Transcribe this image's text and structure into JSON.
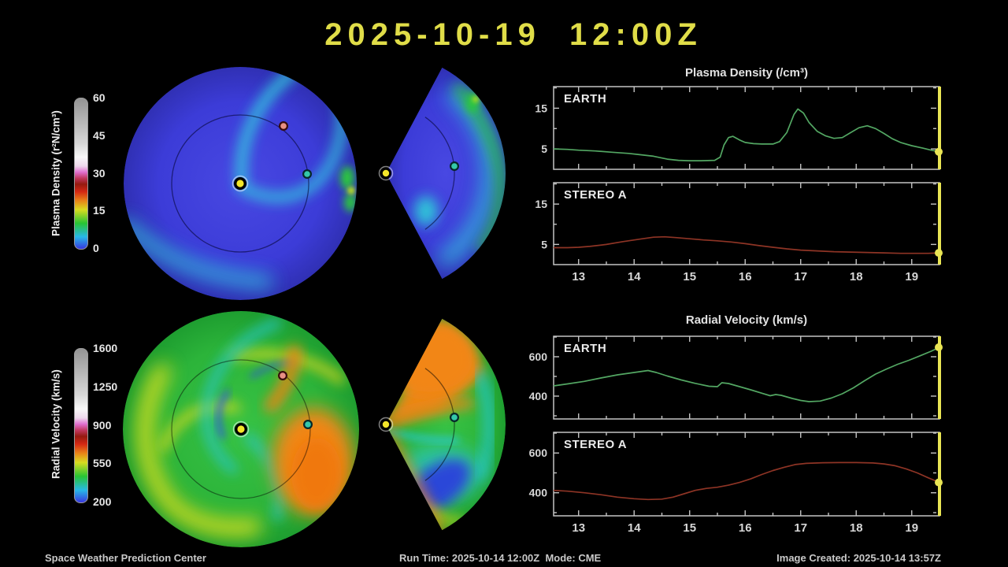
{
  "title": "2025-10-19  12:00Z",
  "colors": {
    "background": "#000000",
    "title_yellow": "#e0dd48",
    "frame_gray": "#c4c4c4",
    "label_gray": "#d6d6d6",
    "earth_line_green": "#53a763",
    "stereo_line_red": "#8e3425",
    "time_marker_yellow": "#e9e554"
  },
  "colorbars": [
    {
      "label": "Plasma Density (r²N/cm³)",
      "ticks": [
        "60",
        "45",
        "30",
        "15",
        "0"
      ]
    },
    {
      "label": "Radial Velocity (km/s)",
      "ticks": [
        "1600",
        "1250",
        "900",
        "550",
        "200"
      ]
    }
  ],
  "chart_data": [
    {
      "id": "plasma-earth",
      "type": "line",
      "group_title": "Plasma Density (/cm³)",
      "panel_label": "EARTH",
      "color_key": "earth_line_green",
      "x": {
        "range": [
          12.55,
          19.5
        ],
        "ticks": [
          13,
          14,
          15,
          16,
          17,
          18,
          19
        ],
        "tick_labels": [
          "13",
          "14",
          "15",
          "16",
          "17",
          "18",
          "19"
        ],
        "minor_step": 0.5
      },
      "y": {
        "range": [
          0,
          20.3
        ],
        "ticks": [
          {
            "v": 5,
            "label": "5"
          },
          {
            "v": 10
          },
          {
            "v": 15,
            "label": "15"
          },
          {
            "v": 20
          }
        ]
      },
      "points": [
        [
          12.55,
          5.0
        ],
        [
          12.8,
          4.9
        ],
        [
          13.0,
          4.7
        ],
        [
          13.3,
          4.5
        ],
        [
          13.6,
          4.2
        ],
        [
          13.9,
          3.9
        ],
        [
          14.1,
          3.6
        ],
        [
          14.35,
          3.2
        ],
        [
          14.6,
          2.5
        ],
        [
          14.8,
          2.2
        ],
        [
          15.0,
          2.1
        ],
        [
          15.2,
          2.1
        ],
        [
          15.45,
          2.2
        ],
        [
          15.55,
          3.0
        ],
        [
          15.62,
          6.0
        ],
        [
          15.7,
          7.8
        ],
        [
          15.78,
          8.1
        ],
        [
          15.9,
          7.2
        ],
        [
          16.0,
          6.6
        ],
        [
          16.15,
          6.3
        ],
        [
          16.3,
          6.2
        ],
        [
          16.5,
          6.2
        ],
        [
          16.62,
          6.8
        ],
        [
          16.75,
          9.0
        ],
        [
          16.88,
          13.5
        ],
        [
          16.95,
          14.8
        ],
        [
          17.05,
          13.8
        ],
        [
          17.15,
          11.5
        ],
        [
          17.3,
          9.3
        ],
        [
          17.45,
          8.2
        ],
        [
          17.6,
          7.6
        ],
        [
          17.75,
          7.8
        ],
        [
          17.9,
          9.0
        ],
        [
          18.05,
          10.2
        ],
        [
          18.2,
          10.7
        ],
        [
          18.35,
          10.0
        ],
        [
          18.5,
          8.8
        ],
        [
          18.65,
          7.5
        ],
        [
          18.8,
          6.6
        ],
        [
          19.0,
          5.8
        ],
        [
          19.2,
          5.2
        ],
        [
          19.35,
          4.7
        ],
        [
          19.5,
          4.3
        ]
      ]
    },
    {
      "id": "plasma-stereo-a",
      "type": "line",
      "group_title": "Plasma Density (/cm³)",
      "panel_label": "STEREO A",
      "color_key": "stereo_line_red",
      "x": {
        "range": [
          12.55,
          19.5
        ],
        "ticks": [
          13,
          14,
          15,
          16,
          17,
          18,
          19
        ],
        "tick_labels": [
          "13",
          "14",
          "15",
          "16",
          "17",
          "18",
          "19"
        ],
        "minor_step": 0.5
      },
      "y": {
        "range": [
          0,
          20.3
        ],
        "ticks": [
          {
            "v": 5,
            "label": "5"
          },
          {
            "v": 10
          },
          {
            "v": 15,
            "label": "15"
          },
          {
            "v": 20
          }
        ]
      },
      "points": [
        [
          12.55,
          4.2
        ],
        [
          12.8,
          4.2
        ],
        [
          13.0,
          4.3
        ],
        [
          13.2,
          4.5
        ],
        [
          13.5,
          5.0
        ],
        [
          13.8,
          5.7
        ],
        [
          14.1,
          6.3
        ],
        [
          14.35,
          6.8
        ],
        [
          14.55,
          6.9
        ],
        [
          14.75,
          6.7
        ],
        [
          15.0,
          6.4
        ],
        [
          15.25,
          6.1
        ],
        [
          15.5,
          5.9
        ],
        [
          15.75,
          5.6
        ],
        [
          16.0,
          5.2
        ],
        [
          16.25,
          4.7
        ],
        [
          16.5,
          4.3
        ],
        [
          16.75,
          3.9
        ],
        [
          17.0,
          3.6
        ],
        [
          17.3,
          3.4
        ],
        [
          17.6,
          3.2
        ],
        [
          17.9,
          3.1
        ],
        [
          18.2,
          3.0
        ],
        [
          18.5,
          2.9
        ],
        [
          18.8,
          2.8
        ],
        [
          19.1,
          2.8
        ],
        [
          19.3,
          2.8
        ],
        [
          19.5,
          2.9
        ]
      ]
    },
    {
      "id": "velocity-earth",
      "type": "line",
      "group_title": "Radial Velocity (km/s)",
      "panel_label": "EARTH",
      "color_key": "earth_line_green",
      "x": {
        "range": [
          12.55,
          19.5
        ],
        "ticks": [
          13,
          14,
          15,
          16,
          17,
          18,
          19
        ],
        "tick_labels": [
          "13",
          "14",
          "15",
          "16",
          "17",
          "18",
          "19"
        ],
        "minor_step": 0.5
      },
      "y": {
        "range": [
          284,
          704
        ],
        "ticks": [
          {
            "v": 300
          },
          {
            "v": 400,
            "label": "400"
          },
          {
            "v": 500
          },
          {
            "v": 600,
            "label": "600"
          },
          {
            "v": 700
          }
        ]
      },
      "points": [
        [
          12.55,
          452
        ],
        [
          12.8,
          462
        ],
        [
          13.1,
          475
        ],
        [
          13.4,
          492
        ],
        [
          13.7,
          508
        ],
        [
          14.0,
          520
        ],
        [
          14.25,
          530
        ],
        [
          14.4,
          520
        ],
        [
          14.6,
          502
        ],
        [
          14.85,
          482
        ],
        [
          15.1,
          465
        ],
        [
          15.35,
          450
        ],
        [
          15.5,
          448
        ],
        [
          15.58,
          468
        ],
        [
          15.7,
          464
        ],
        [
          15.9,
          448
        ],
        [
          16.1,
          432
        ],
        [
          16.3,
          415
        ],
        [
          16.45,
          402
        ],
        [
          16.55,
          408
        ],
        [
          16.65,
          404
        ],
        [
          16.85,
          388
        ],
        [
          17.0,
          378
        ],
        [
          17.15,
          372
        ],
        [
          17.35,
          375
        ],
        [
          17.55,
          390
        ],
        [
          17.75,
          412
        ],
        [
          17.95,
          442
        ],
        [
          18.15,
          478
        ],
        [
          18.35,
          512
        ],
        [
          18.55,
          538
        ],
        [
          18.75,
          562
        ],
        [
          18.95,
          582
        ],
        [
          19.15,
          605
        ],
        [
          19.35,
          628
        ],
        [
          19.5,
          648
        ]
      ]
    },
    {
      "id": "velocity-stereo-a",
      "type": "line",
      "group_title": "Radial Velocity (km/s)",
      "panel_label": "STEREO A",
      "color_key": "stereo_line_red",
      "x": {
        "range": [
          12.55,
          19.5
        ],
        "ticks": [
          13,
          14,
          15,
          16,
          17,
          18,
          19
        ],
        "tick_labels": [
          "13",
          "14",
          "15",
          "16",
          "17",
          "18",
          "19"
        ],
        "minor_step": 0.5
      },
      "y": {
        "range": [
          284,
          704
        ],
        "ticks": [
          {
            "v": 300
          },
          {
            "v": 400,
            "label": "400"
          },
          {
            "v": 500
          },
          {
            "v": 600,
            "label": "600"
          },
          {
            "v": 700
          }
        ]
      },
      "points": [
        [
          12.55,
          412
        ],
        [
          12.8,
          408
        ],
        [
          13.1,
          400
        ],
        [
          13.4,
          390
        ],
        [
          13.7,
          378
        ],
        [
          14.0,
          370
        ],
        [
          14.25,
          366
        ],
        [
          14.5,
          368
        ],
        [
          14.7,
          378
        ],
        [
          14.9,
          395
        ],
        [
          15.1,
          412
        ],
        [
          15.3,
          422
        ],
        [
          15.5,
          428
        ],
        [
          15.7,
          438
        ],
        [
          15.9,
          452
        ],
        [
          16.1,
          470
        ],
        [
          16.3,
          492
        ],
        [
          16.5,
          512
        ],
        [
          16.7,
          528
        ],
        [
          16.9,
          542
        ],
        [
          17.1,
          548
        ],
        [
          17.4,
          551
        ],
        [
          17.7,
          552
        ],
        [
          18.0,
          552
        ],
        [
          18.3,
          550
        ],
        [
          18.5,
          545
        ],
        [
          18.7,
          536
        ],
        [
          18.9,
          520
        ],
        [
          19.1,
          500
        ],
        [
          19.3,
          475
        ],
        [
          19.5,
          452
        ]
      ]
    }
  ],
  "footer": {
    "left": "Space Weather Prediction Center",
    "center": "Run Time: 2025-10-14 12:00Z  Mode: CME",
    "right": "Image Created: 2025-10-14 13:57Z"
  }
}
